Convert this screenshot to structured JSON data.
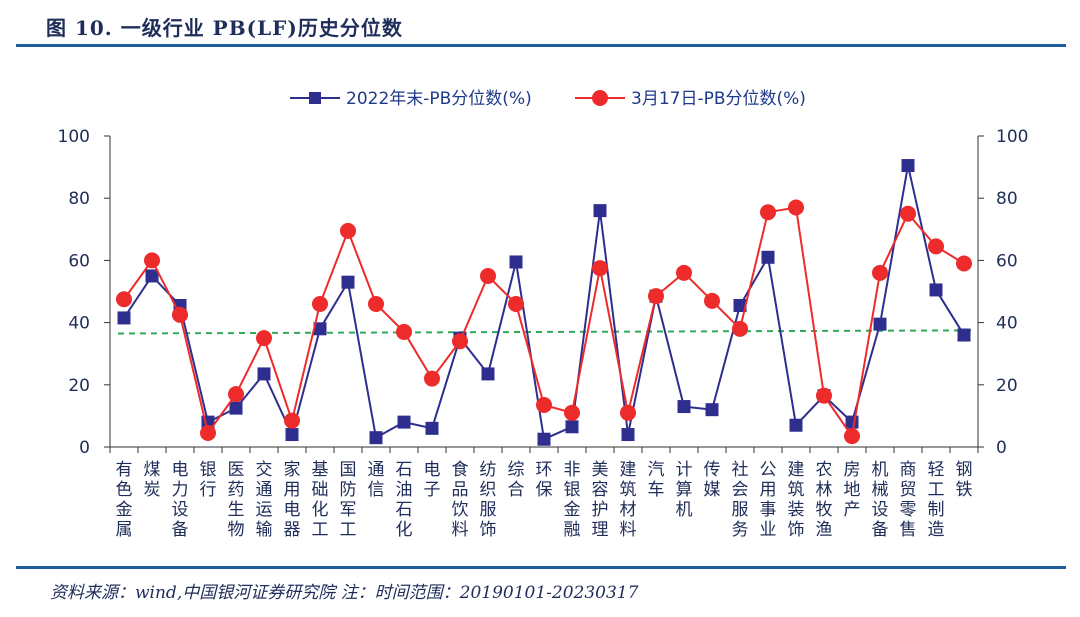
{
  "figure_title": "图 10. 一级行业 PB(LF)历史分位数",
  "source_note": "资料来源：wind,中国银河证券研究院   注：时间范围：20190101-20230317",
  "chart_data": {
    "type": "line",
    "title": "",
    "xlabel": "",
    "ylabel": "",
    "ylim": [
      0,
      100
    ],
    "y_ticks": [
      "0",
      "20",
      "40",
      "60",
      "80",
      "100"
    ],
    "y2lim": [
      0,
      100
    ],
    "y2_ticks": [
      "0",
      "20",
      "40",
      "60",
      "80",
      "100"
    ],
    "legend_position": "top-center",
    "grid": false,
    "categories": [
      "有色金属",
      "煤炭",
      "电力设备",
      "银行",
      "医药生物",
      "交通运输",
      "家用电器",
      "基础化工",
      "国防军工",
      "通信",
      "石油石化",
      "电子",
      "食品饮料",
      "纺织服饰",
      "综合",
      "环保",
      "非银金融",
      "美容护理",
      "建筑材料",
      "汽车",
      "计算机",
      "传媒",
      "社会服务",
      "公用事业",
      "建筑装饰",
      "农林牧渔",
      "房地产",
      "机械设备",
      "商贸零售",
      "轻工制造",
      "钢铁"
    ],
    "series": [
      {
        "name": "2022年末-PB分位数(%)",
        "color": "#2e2e8f",
        "marker": "square",
        "values": [
          41.5,
          55,
          45.5,
          8,
          12.5,
          23.5,
          4,
          38,
          53,
          3,
          8,
          6,
          35,
          23.5,
          59.5,
          2.5,
          6.5,
          76,
          4,
          48.5,
          13,
          12,
          45.5,
          61,
          7,
          16.5,
          8,
          39.5,
          90.5,
          50.5,
          36
        ]
      },
      {
        "name": "3月17日-PB分位数(%)",
        "color": "#ee2b2b",
        "marker": "circle",
        "values": [
          47.5,
          60,
          42.5,
          4.5,
          17,
          35,
          8.5,
          46,
          69.5,
          46,
          37,
          22,
          34,
          55,
          46,
          13.5,
          11,
          57.5,
          11,
          48.5,
          56,
          47,
          38,
          75.5,
          77,
          16.5,
          3.5,
          56,
          75,
          64.5,
          59
        ]
      }
    ],
    "reference_line": {
      "color": "#2eaa5a",
      "y_start": 36.5,
      "y_end": 37.5
    }
  }
}
